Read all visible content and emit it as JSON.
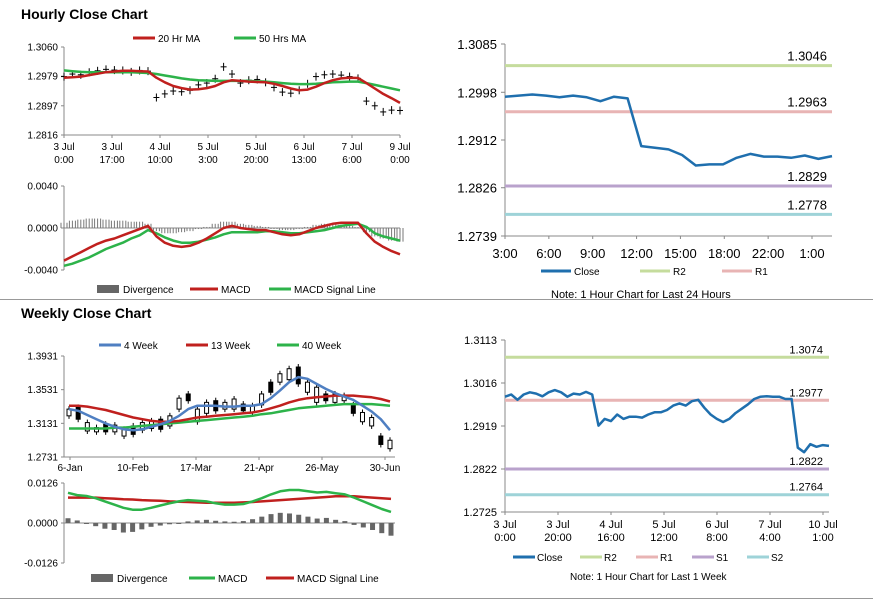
{
  "sections": {
    "hourly_title": "Hourly Close Chart",
    "weekly_title": "Weekly Close Chart"
  },
  "colors": {
    "red": "#c0201e",
    "green": "#2db34a",
    "blue": "#4f7fc2",
    "dark_blue": "#1f6fae",
    "r2": "#c5dc9d",
    "r1": "#e8b4b4",
    "s1": "#b9a2cc",
    "s2": "#9ed3d8",
    "divergence": "#666666"
  },
  "notes": {
    "hourly": "Note: 1 Hour Chart for Last 24 Hours",
    "weekly": "Note: 1 Hour Chart for Last 1 Week"
  },
  "chart_data": [
    {
      "id": "hourly_price",
      "type": "line",
      "legend": [
        "20 Hr MA",
        "50 Hrs MA"
      ],
      "y_ticks": [
        "1.3060",
        "1.2979",
        "1.2897",
        "1.2816"
      ],
      "ylim": [
        1.2816,
        1.306
      ],
      "x_ticks": [
        [
          "3 Jul",
          "0:00"
        ],
        [
          "3 Jul",
          "17:00"
        ],
        [
          "4 Jul",
          "10:00"
        ],
        [
          "5 Jul",
          "3:00"
        ],
        [
          "5 Jul",
          "20:00"
        ],
        [
          "6 Jul",
          "13:00"
        ],
        [
          "7 Jul",
          "6:00"
        ],
        [
          "9 Jul",
          "0:00"
        ]
      ],
      "x": [
        0,
        1,
        2,
        3,
        4,
        5,
        6,
        7,
        8,
        9,
        10,
        11,
        12,
        13,
        14,
        15,
        16,
        17,
        18,
        19,
        20,
        21,
        22,
        23,
        24,
        25,
        26,
        27,
        28,
        29,
        30,
        31,
        32,
        33,
        34,
        35,
        36,
        37,
        38,
        39,
        40
      ],
      "series": [
        {
          "name": "Close",
          "values": [
            1.2978,
            1.2985,
            1.2983,
            1.299,
            1.2994,
            1.2998,
            1.2996,
            1.2995,
            1.2991,
            1.2995,
            1.2993,
            1.292,
            1.293,
            1.2938,
            1.2936,
            1.294,
            1.2955,
            1.296,
            1.2972,
            1.3005,
            1.2985,
            1.296,
            1.2968,
            1.297,
            1.2962,
            1.2948,
            1.2935,
            1.2932,
            1.294,
            1.2958,
            1.2978,
            1.2983,
            1.2985,
            1.2982,
            1.2978,
            1.2973,
            1.291,
            1.2897,
            1.288,
            1.2885,
            1.2884
          ]
        },
        {
          "name": "20 Hr MA",
          "values": [
            1.2975,
            1.2976,
            1.2978,
            1.2982,
            1.2986,
            1.299,
            1.2992,
            1.2994,
            1.2994,
            1.2993,
            1.2992,
            1.2975,
            1.2962,
            1.2952,
            1.2946,
            1.2942,
            1.2943,
            1.2946,
            1.2952,
            1.2962,
            1.2968,
            1.2966,
            1.2964,
            1.2963,
            1.2962,
            1.2958,
            1.2952,
            1.2945,
            1.294,
            1.2942,
            1.295,
            1.296,
            1.2968,
            1.2973,
            1.2975,
            1.2974,
            1.296,
            1.2945,
            1.293,
            1.2918,
            1.2905
          ]
        },
        {
          "name": "50 Hrs MA",
          "values": [
            1.2995,
            1.2993,
            1.2991,
            1.299,
            1.299,
            1.299,
            1.299,
            1.299,
            1.299,
            1.2989,
            1.2988,
            1.2985,
            1.2981,
            1.2977,
            1.2973,
            1.297,
            1.2968,
            1.2967,
            1.2966,
            1.2966,
            1.2966,
            1.2966,
            1.2966,
            1.2965,
            1.2964,
            1.2962,
            1.296,
            1.2958,
            1.2957,
            1.2957,
            1.2958,
            1.296,
            1.2962,
            1.2963,
            1.2964,
            1.2964,
            1.296,
            1.2955,
            1.295,
            1.2945,
            1.294
          ]
        }
      ]
    },
    {
      "id": "hourly_macd",
      "type": "line",
      "legend": [
        "Divergence",
        "MACD",
        "MACD Signal Line"
      ],
      "y_ticks": [
        "0.0040",
        "0.0000",
        "-0.0040"
      ],
      "ylim": [
        -0.004,
        0.004
      ],
      "series": [
        {
          "name": "Divergence",
          "values": [
            0.0005,
            0.0007,
            0.0008,
            0.0009,
            0.0009,
            0.0008,
            0.0007,
            0.0007,
            0.0006,
            0.0006,
            0.0004,
            -0.0003,
            -0.0005,
            -0.0005,
            -0.0004,
            -0.0003,
            -0.0001,
            0.0001,
            0.0004,
            0.0006,
            0.0006,
            0.0004,
            0.0003,
            0.0002,
            0.0001,
            -0.0001,
            -0.0002,
            -0.0002,
            -0.0001,
            0.0001,
            0.0003,
            0.0004,
            0.0004,
            0.0003,
            0.0002,
            0.0001,
            -0.0004,
            -0.0008,
            -0.001,
            -0.0012,
            -0.0013
          ]
        },
        {
          "name": "MACD",
          "values": [
            -0.0031,
            -0.0027,
            -0.0023,
            -0.0019,
            -0.0015,
            -0.0012,
            -0.001,
            -0.0007,
            -0.0004,
            -0.0001,
            0.0002,
            -0.0008,
            -0.0014,
            -0.0017,
            -0.0018,
            -0.0017,
            -0.0014,
            -0.001,
            -0.0005,
            0.0,
            0.0002,
            0.0,
            -0.0001,
            -0.0002,
            -0.0002,
            -0.0004,
            -0.0006,
            -0.0007,
            -0.0006,
            -0.0003,
            0.0,
            0.0002,
            0.0004,
            0.0005,
            0.0005,
            0.0005,
            -0.0005,
            -0.0013,
            -0.0018,
            -0.0022,
            -0.0025
          ]
        },
        {
          "name": "MACD Signal Line",
          "values": [
            -0.0036,
            -0.0034,
            -0.0031,
            -0.0028,
            -0.0024,
            -0.002,
            -0.0017,
            -0.0014,
            -0.001,
            -0.0007,
            -0.0002,
            -0.0005,
            -0.0009,
            -0.0012,
            -0.0014,
            -0.0014,
            -0.0013,
            -0.0011,
            -0.0009,
            -0.0006,
            -0.0004,
            -0.0004,
            -0.0004,
            -0.0004,
            -0.0003,
            -0.0003,
            -0.0004,
            -0.0005,
            -0.0005,
            -0.0004,
            -0.0003,
            -0.0002,
            0.0,
            0.0002,
            0.0003,
            0.0004,
            0.0001,
            -0.0005,
            -0.0008,
            -0.001,
            -0.0012
          ]
        }
      ]
    },
    {
      "id": "hourly_24h",
      "type": "line",
      "y_ticks": [
        "1.3085",
        "1.2998",
        "1.2912",
        "1.2826",
        "1.2739"
      ],
      "ylim": [
        1.2739,
        1.3085
      ],
      "x_ticks": [
        "3:00",
        "6:00",
        "9:00",
        "12:00",
        "15:00",
        "18:00",
        "22:00",
        "1:00"
      ],
      "levels": [
        {
          "name": "R2",
          "value": 1.3046,
          "label": "1.3046",
          "color_key": "r2"
        },
        {
          "name": "R1",
          "value": 1.2963,
          "label": "1.2963",
          "color_key": "r1"
        },
        {
          "name": "S1",
          "value": 1.2829,
          "label": "1.2829",
          "color_key": "s1"
        },
        {
          "name": "S2",
          "value": 1.2778,
          "label": "1.2778",
          "color_key": "s2"
        }
      ],
      "legend": [
        "Close",
        "R2",
        "R1"
      ],
      "series": [
        {
          "name": "Close",
          "values": [
            1.299,
            1.2992,
            1.2994,
            1.2992,
            1.2989,
            1.2992,
            1.2989,
            1.2982,
            1.299,
            1.2987,
            1.2901,
            1.2898,
            1.2895,
            1.2885,
            1.2866,
            1.2868,
            1.2868,
            1.288,
            1.2887,
            1.2882,
            1.2882,
            1.288,
            1.2884,
            1.2878,
            1.2883
          ]
        }
      ]
    },
    {
      "id": "weekly_price",
      "type": "line",
      "legend": [
        "4 Week",
        "13 Week",
        "40 Week"
      ],
      "y_ticks": [
        "1.3931",
        "1.3531",
        "1.3131",
        "1.2731"
      ],
      "ylim": [
        1.2731,
        1.3931
      ],
      "x_ticks": [
        "6-Jan",
        "10-Feb",
        "17-Mar",
        "21-Apr",
        "26-May",
        "30-Jun"
      ],
      "candles": [
        [
          1.33,
          1.322
        ],
        [
          1.332,
          1.318
        ],
        [
          1.314,
          1.304
        ],
        [
          1.308,
          1.303
        ],
        [
          1.312,
          1.303
        ],
        [
          1.311,
          1.303
        ],
        [
          1.306,
          1.298
        ],
        [
          1.31,
          1.3
        ],
        [
          1.314,
          1.305
        ],
        [
          1.316,
          1.307
        ],
        [
          1.318,
          1.306
        ],
        [
          1.322,
          1.31
        ],
        [
          1.343,
          1.33
        ],
        [
          1.348,
          1.34
        ],
        [
          1.33,
          1.315
        ],
        [
          1.338,
          1.325
        ],
        [
          1.34,
          1.328
        ],
        [
          1.338,
          1.33
        ],
        [
          1.342,
          1.33
        ],
        [
          1.336,
          1.328
        ],
        [
          1.334,
          1.326
        ],
        [
          1.348,
          1.335
        ],
        [
          1.362,
          1.35
        ],
        [
          1.372,
          1.362
        ],
        [
          1.378,
          1.365
        ],
        [
          1.38,
          1.36
        ],
        [
          1.362,
          1.35
        ],
        [
          1.356,
          1.338
        ],
        [
          1.348,
          1.34
        ],
        [
          1.348,
          1.338
        ],
        [
          1.346,
          1.34
        ],
        [
          1.335,
          1.325
        ],
        [
          1.326,
          1.315
        ],
        [
          1.32,
          1.31
        ],
        [
          1.298,
          1.288
        ],
        [
          1.293,
          1.283
        ]
      ],
      "series": [
        {
          "name": "4 Week",
          "values": [
            1.33,
            1.328,
            1.323,
            1.318,
            1.313,
            1.309,
            1.306,
            1.305,
            1.306,
            1.309,
            1.312,
            1.316,
            1.322,
            1.33,
            1.334,
            1.334,
            1.334,
            1.333,
            1.333,
            1.334,
            1.334,
            1.336,
            1.343,
            1.352,
            1.362,
            1.368,
            1.366,
            1.36,
            1.354,
            1.349,
            1.345,
            1.341,
            1.334,
            1.327,
            1.318,
            1.305
          ]
        },
        {
          "name": "13 Week",
          "values": [
            1.334,
            1.334,
            1.333,
            1.331,
            1.329,
            1.326,
            1.323,
            1.32,
            1.318,
            1.316,
            1.315,
            1.315,
            1.316,
            1.318,
            1.32,
            1.321,
            1.322,
            1.323,
            1.324,
            1.325,
            1.326,
            1.328,
            1.331,
            1.334,
            1.338,
            1.341,
            1.343,
            1.344,
            1.345,
            1.346,
            1.346,
            1.346,
            1.345,
            1.344,
            1.342,
            1.339
          ]
        },
        {
          "name": "40 Week",
          "values": [
            1.307,
            1.307,
            1.307,
            1.307,
            1.307,
            1.308,
            1.308,
            1.309,
            1.31,
            1.311,
            1.312,
            1.313,
            1.314,
            1.315,
            1.316,
            1.317,
            1.318,
            1.319,
            1.32,
            1.321,
            1.322,
            1.324,
            1.325,
            1.327,
            1.329,
            1.331,
            1.332,
            1.333,
            1.334,
            1.335,
            1.336,
            1.336,
            1.336,
            1.336,
            1.335,
            1.334
          ]
        }
      ]
    },
    {
      "id": "weekly_macd",
      "type": "line",
      "legend": [
        "Divergence",
        "MACD",
        "MACD Signal Line"
      ],
      "y_ticks": [
        "0.0126",
        "0.0000",
        "-0.0126"
      ],
      "ylim": [
        -0.0126,
        0.0126
      ],
      "series": [
        {
          "name": "Divergence",
          "values": [
            0.0015,
            0.0008,
            -0.0002,
            -0.001,
            -0.0018,
            -0.0022,
            -0.003,
            -0.0028,
            -0.002,
            -0.0012,
            -0.0008,
            -0.0004,
            0.0,
            0.0005,
            0.0008,
            0.001,
            0.0007,
            0.0005,
            0.0004,
            0.0006,
            0.0012,
            0.002,
            0.0028,
            0.0032,
            0.003,
            0.0026,
            0.002,
            0.0014,
            0.0016,
            0.001,
            0.0006,
            -0.0006,
            -0.0014,
            -0.0022,
            -0.0032,
            -0.004
          ]
        },
        {
          "name": "MACD",
          "values": [
            0.0095,
            0.0088,
            0.0085,
            0.0078,
            0.0068,
            0.0058,
            0.0048,
            0.0042,
            0.0042,
            0.0048,
            0.0055,
            0.0062,
            0.0068,
            0.0072,
            0.007,
            0.0068,
            0.0062,
            0.0058,
            0.0058,
            0.006,
            0.0068,
            0.0078,
            0.009,
            0.01,
            0.0104,
            0.0104,
            0.01,
            0.0096,
            0.0098,
            0.0094,
            0.009,
            0.008,
            0.0068,
            0.0056,
            0.0044,
            0.0035
          ]
        },
        {
          "name": "MACD Signal Line",
          "values": [
            0.008,
            0.008,
            0.008,
            0.008,
            0.0078,
            0.0077,
            0.0075,
            0.0074,
            0.0072,
            0.0071,
            0.007,
            0.0068,
            0.0067,
            0.0066,
            0.0065,
            0.0064,
            0.0064,
            0.0064,
            0.0064,
            0.0065,
            0.0066,
            0.0068,
            0.007,
            0.0072,
            0.0074,
            0.0076,
            0.0078,
            0.008,
            0.0082,
            0.0084,
            0.0084,
            0.0084,
            0.0082,
            0.008,
            0.0078,
            0.0076
          ]
        }
      ]
    },
    {
      "id": "weekly_1w",
      "type": "line",
      "y_ticks": [
        "1.3113",
        "1.3016",
        "1.2919",
        "1.2822",
        "1.2725"
      ],
      "ylim": [
        1.2725,
        1.3113
      ],
      "x_ticks": [
        [
          "3 Jul",
          "0:00"
        ],
        [
          "3 Jul",
          "20:00"
        ],
        [
          "4 Jul",
          "16:00"
        ],
        [
          "5 Jul",
          "12:00"
        ],
        [
          "6 Jul",
          "8:00"
        ],
        [
          "7 Jul",
          "4:00"
        ],
        [
          "10 Jul",
          "1:00"
        ]
      ],
      "levels": [
        {
          "name": "R2",
          "value": 1.3074,
          "label": "1.3074",
          "color_key": "r2"
        },
        {
          "name": "R1",
          "value": 1.2977,
          "label": "1.2977",
          "color_key": "r1"
        },
        {
          "name": "S1",
          "value": 1.2822,
          "label": "1.2822",
          "color_key": "s1"
        },
        {
          "name": "S2",
          "value": 1.2764,
          "label": "1.2764",
          "color_key": "s2"
        }
      ],
      "legend": [
        "Close",
        "R2",
        "R1",
        "S1",
        "S2"
      ],
      "series": [
        {
          "name": "Close",
          "values": [
            1.2985,
            1.299,
            1.2978,
            1.299,
            1.2995,
            1.2992,
            1.2986,
            1.2995,
            1.3,
            1.2995,
            1.2985,
            1.2992,
            1.299,
            1.2996,
            1.299,
            1.292,
            1.2935,
            1.293,
            1.2945,
            1.2935,
            1.294,
            1.294,
            1.2938,
            1.2945,
            1.295,
            1.295,
            1.2955,
            1.2965,
            1.297,
            1.2965,
            1.2975,
            1.2978,
            1.296,
            1.2945,
            1.2935,
            1.2928,
            1.2935,
            1.2948,
            1.2958,
            1.2968,
            1.298,
            1.2985,
            1.2986,
            1.2985,
            1.2985,
            1.298,
            1.298,
            1.287,
            1.286,
            1.2878,
            1.2872,
            1.2876,
            1.2874
          ]
        }
      ]
    }
  ]
}
